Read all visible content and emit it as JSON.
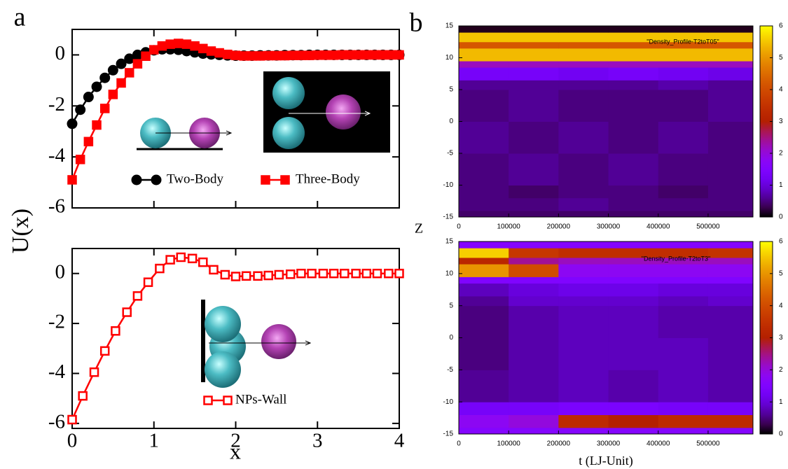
{
  "chart_data": [
    {
      "type": "line",
      "panel": "a",
      "ylabel": "U(x)",
      "x": [
        0,
        0.1,
        0.2,
        0.3,
        0.4,
        0.5,
        0.6,
        0.7,
        0.8,
        0.9,
        1.0,
        1.1,
        1.2,
        1.3,
        1.4,
        1.5,
        1.6,
        1.7,
        1.8,
        1.9,
        2.0,
        2.1,
        2.2,
        2.3,
        2.4,
        2.5,
        2.6,
        2.7,
        2.8,
        2.9,
        3.0,
        3.1,
        3.2,
        3.3,
        3.4,
        3.5,
        3.6,
        3.7,
        3.8,
        3.9,
        4.0
      ],
      "series": [
        {
          "name": "Two-Body",
          "color": "#000000",
          "marker": "circle",
          "filled": true,
          "values": [
            -2.7,
            -2.15,
            -1.65,
            -1.25,
            -0.9,
            -0.6,
            -0.35,
            -0.15,
            0.0,
            0.1,
            0.18,
            0.22,
            0.22,
            0.2,
            0.15,
            0.1,
            0.05,
            0.02,
            0.0,
            -0.02,
            -0.03,
            -0.03,
            -0.03,
            -0.02,
            -0.02,
            -0.02,
            -0.01,
            -0.01,
            -0.01,
            0,
            0,
            0,
            0,
            0,
            0,
            0,
            0,
            0,
            0,
            0,
            0
          ]
        },
        {
          "name": "Three-Body",
          "color": "#ff0000",
          "marker": "square",
          "filled": true,
          "values": [
            -4.9,
            -4.1,
            -3.4,
            -2.75,
            -2.1,
            -1.55,
            -1.1,
            -0.7,
            -0.35,
            -0.05,
            0.2,
            0.35,
            0.42,
            0.45,
            0.42,
            0.35,
            0.25,
            0.15,
            0.08,
            0.02,
            -0.02,
            -0.04,
            -0.04,
            -0.04,
            -0.03,
            -0.03,
            -0.03,
            -0.02,
            -0.02,
            -0.02,
            -0.01,
            -0.01,
            -0.01,
            0,
            0,
            0,
            0,
            0,
            0,
            0,
            0
          ]
        }
      ],
      "xlim": [
        0,
        4
      ],
      "xticks": [
        0,
        1,
        2,
        3,
        4
      ],
      "show_xtick_labels": false,
      "ylim": [
        -6,
        1
      ],
      "yticks": [
        -6,
        -4,
        -2,
        0
      ]
    },
    {
      "type": "line",
      "xlabel": "x",
      "x": [
        0,
        0.13,
        0.27,
        0.4,
        0.53,
        0.67,
        0.8,
        0.93,
        1.07,
        1.2,
        1.33,
        1.47,
        1.6,
        1.73,
        1.87,
        2.0,
        2.13,
        2.27,
        2.4,
        2.53,
        2.67,
        2.8,
        2.93,
        3.07,
        3.2,
        3.33,
        3.47,
        3.6,
        3.73,
        3.87,
        4.0
      ],
      "series": [
        {
          "name": "NPs-Wall",
          "color": "#ff0000",
          "marker": "square",
          "filled": false,
          "values": [
            -5.85,
            -4.9,
            -3.95,
            -3.1,
            -2.3,
            -1.55,
            -0.9,
            -0.35,
            0.2,
            0.55,
            0.65,
            0.6,
            0.45,
            0.15,
            -0.05,
            -0.12,
            -0.1,
            -0.1,
            -0.08,
            -0.05,
            -0.03,
            0,
            0,
            0,
            0,
            0,
            0,
            0,
            0,
            0,
            0
          ]
        }
      ],
      "xlim": [
        0,
        4
      ],
      "xticks": [
        0,
        1,
        2,
        3,
        4
      ],
      "show_xtick_labels": true,
      "ylim": [
        -6.2,
        1
      ],
      "yticks": [
        -6,
        -4,
        -2,
        0
      ]
    },
    {
      "type": "heatmap",
      "panel": "b",
      "ylabel": "Z",
      "title": "\"Density_Profile-T2toT05\"",
      "x_edges": [
        0,
        100000,
        200000,
        300000,
        400000,
        500000,
        590000
      ],
      "y_edges": [
        -15,
        -14,
        -12,
        -10,
        -5,
        0,
        5,
        6.5,
        8.5,
        9.5,
        11.5,
        12.5,
        14,
        15
      ],
      "z": [
        [
          0.4,
          0.4,
          0.4,
          0.4,
          0.4,
          0.4
        ],
        [
          0.5,
          0.5,
          0.6,
          0.5,
          0.5,
          0.5
        ],
        [
          0.5,
          0.4,
          0.5,
          0.5,
          0.4,
          0.5
        ],
        [
          0.5,
          0.6,
          0.5,
          0.6,
          0.5,
          0.5
        ],
        [
          0.6,
          0.5,
          0.6,
          0.5,
          0.6,
          0.5
        ],
        [
          0.5,
          0.6,
          0.5,
          0.5,
          0.5,
          0.6
        ],
        [
          0.6,
          0.6,
          0.6,
          0.6,
          0.7,
          0.6
        ],
        [
          1.3,
          1.3,
          1.2,
          1.3,
          1.2,
          1.1
        ],
        [
          2.2,
          2.2,
          2.2,
          2.2,
          2.2,
          2.2
        ],
        [
          5.4,
          5.4,
          5.4,
          5.4,
          5.4,
          5.4
        ],
        [
          4.2,
          4.2,
          4.2,
          4.2,
          4.2,
          4.2
        ],
        [
          5.5,
          5.5,
          5.5,
          5.5,
          5.5,
          5.5
        ],
        [
          0.1,
          0.1,
          0.1,
          0.1,
          0.1,
          0.1
        ]
      ],
      "xlim": [
        0,
        590000
      ],
      "xticks": [
        0,
        100000,
        200000,
        300000,
        400000,
        500000
      ],
      "ylim": [
        -15,
        15
      ],
      "yticks": [
        -15,
        -10,
        -5,
        0,
        5,
        10,
        15
      ],
      "clim": [
        0,
        6
      ],
      "cticks": [
        0,
        1,
        2,
        3,
        4,
        5,
        6
      ],
      "colormap": "gnuplot"
    },
    {
      "type": "heatmap",
      "xlabel": "t (LJ-Unit)",
      "title": "\"Density_Profile-T2toT3\"",
      "x_edges": [
        0,
        100000,
        200000,
        300000,
        400000,
        500000,
        590000
      ],
      "y_edges": [
        -15,
        -14,
        -12,
        -10,
        -5,
        0,
        5,
        6.5,
        8.5,
        9.5,
        11.5,
        12.5,
        14,
        15
      ],
      "z": [
        [
          1.6,
          1.6,
          1.6,
          1.6,
          1.6,
          1.6
        ],
        [
          1.8,
          2.0,
          3.3,
          3.0,
          3.3,
          3.3
        ],
        [
          1.3,
          1.3,
          1.4,
          1.4,
          1.3,
          1.3
        ],
        [
          0.6,
          0.7,
          0.8,
          0.7,
          0.8,
          0.7
        ],
        [
          0.5,
          0.7,
          0.8,
          0.8,
          0.8,
          0.7
        ],
        [
          0.5,
          0.7,
          0.8,
          0.8,
          0.7,
          0.7
        ],
        [
          0.6,
          0.9,
          0.9,
          0.9,
          0.8,
          0.9
        ],
        [
          0.8,
          1.0,
          1.1,
          1.1,
          1.0,
          1.0
        ],
        [
          1.5,
          1.5,
          1.5,
          1.5,
          1.5,
          1.5
        ],
        [
          5.0,
          4.0,
          1.8,
          1.8,
          1.8,
          1.8
        ],
        [
          3.2,
          2.4,
          2.2,
          2.2,
          2.2,
          2.2
        ],
        [
          5.6,
          3.6,
          3.4,
          3.4,
          3.4,
          3.5
        ],
        [
          1.6,
          1.6,
          1.6,
          1.6,
          1.6,
          1.6
        ]
      ],
      "xlim": [
        0,
        590000
      ],
      "xticks": [
        0,
        100000,
        200000,
        300000,
        400000,
        500000
      ],
      "ylim": [
        -15,
        15
      ],
      "yticks": [
        -15,
        -10,
        -5,
        0,
        5,
        10,
        15
      ],
      "clim": [
        0,
        6
      ],
      "cticks": [
        0,
        1,
        2,
        3,
        4,
        5,
        6
      ],
      "colormap": "gnuplot"
    }
  ]
}
